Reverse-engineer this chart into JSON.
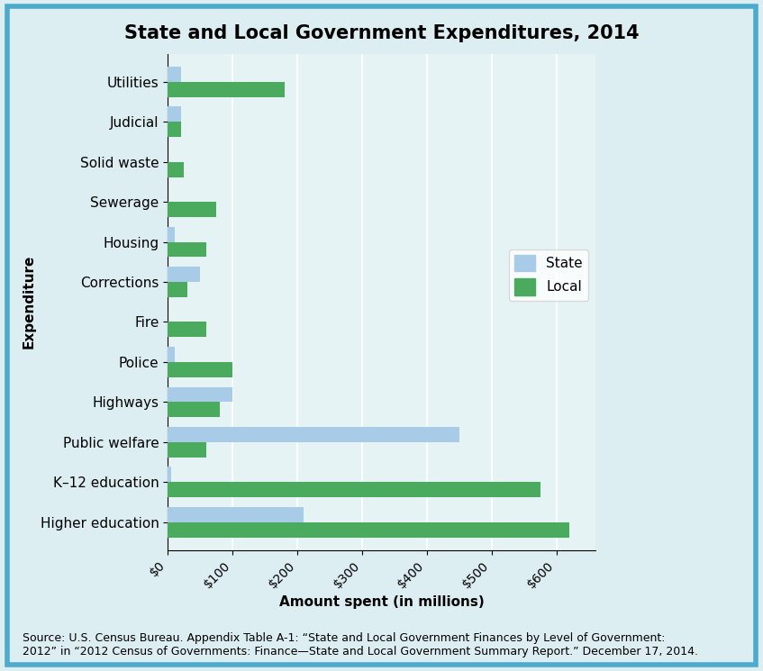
{
  "title": "State and Local Government Expenditures, 2014",
  "categories": [
    "Higher education",
    "K–12 education",
    "Public welfare",
    "Highways",
    "Police",
    "Fire",
    "Corrections",
    "Housing",
    "Sewerage",
    "Solid waste",
    "Judicial",
    "Utilities"
  ],
  "state_values": [
    210,
    5,
    450,
    100,
    10,
    0,
    50,
    10,
    0,
    0,
    20,
    20
  ],
  "local_values": [
    620,
    575,
    60,
    80,
    100,
    60,
    30,
    60,
    75,
    25,
    20,
    180
  ],
  "state_color": "#a8cce8",
  "local_color": "#4aaa5e",
  "xlabel": "Amount spent (in millions)",
  "ylabel": "Expenditure",
  "xlim": [
    0,
    660
  ],
  "xtick_values": [
    0,
    100,
    200,
    300,
    400,
    500,
    600
  ],
  "xtick_labels": [
    "$0",
    "$100",
    "$200",
    "$300",
    "$400",
    "$500",
    "$600"
  ],
  "background_color": "#ddeef2",
  "plot_bg_color": "#e5f3f4",
  "border_color": "#4eaacc",
  "source_text": "Source: U.S. Census Bureau. Appendix Table A-1: “State and Local Government Finances by Level of Government:\n2012” in “2012 Census of Governments: Finance—State and Local Government Summary Report.” December 17, 2014.",
  "title_fontsize": 15,
  "label_fontsize": 11,
  "tick_fontsize": 10,
  "source_fontsize": 9,
  "legend_labels": [
    "State",
    "Local"
  ],
  "bar_height": 0.38
}
